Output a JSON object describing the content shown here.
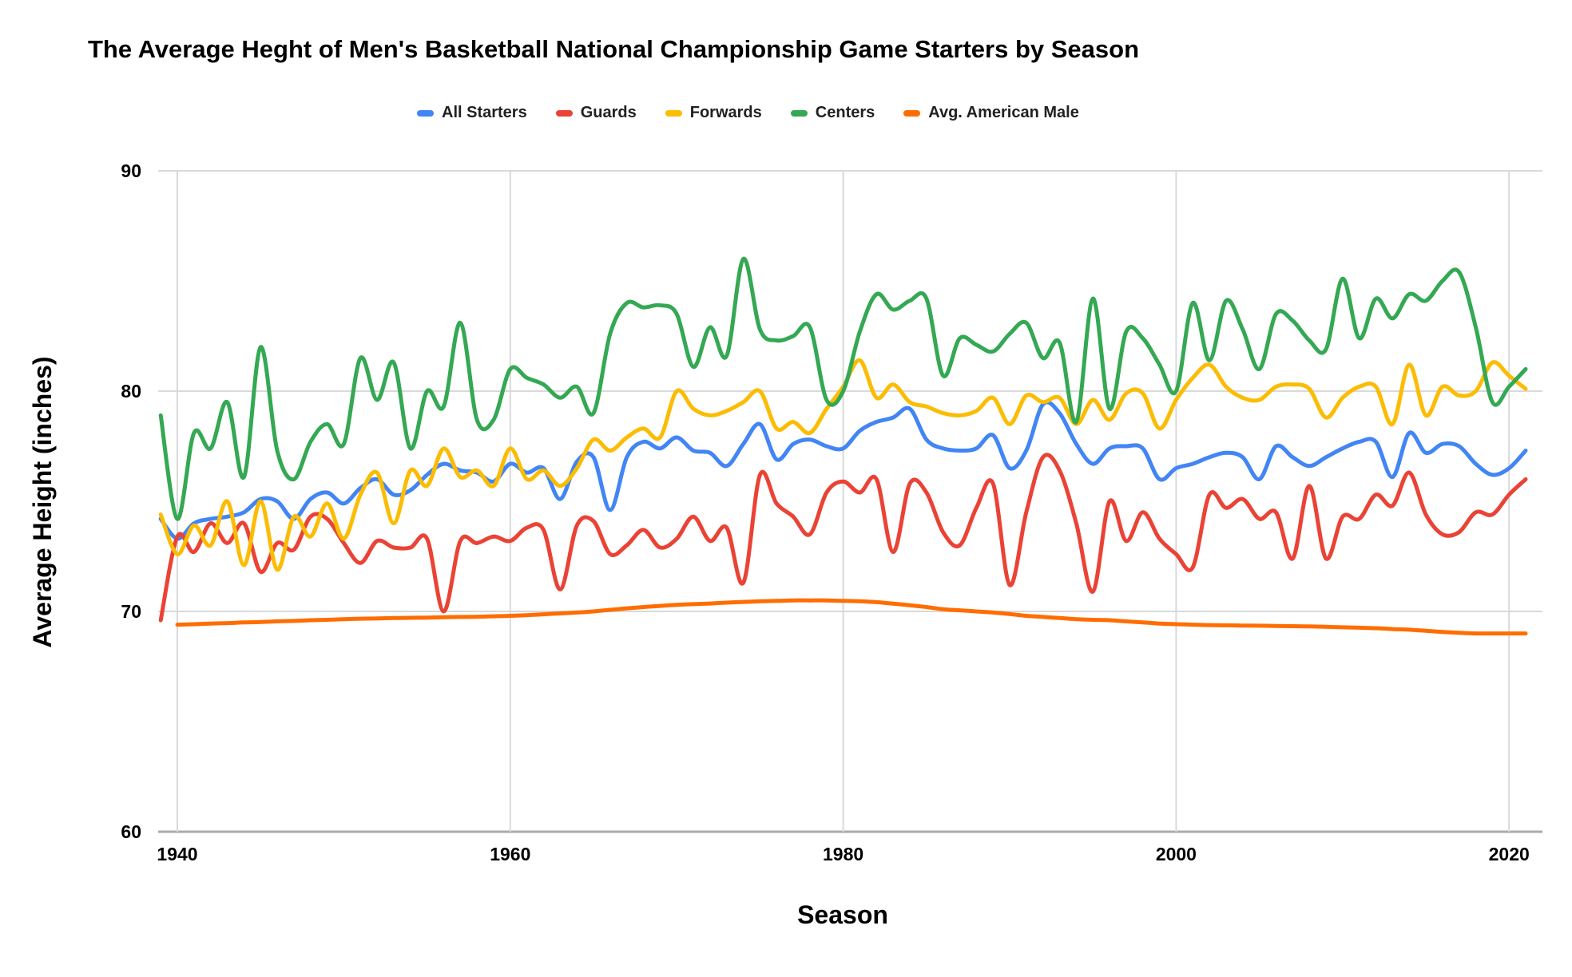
{
  "chart_data": {
    "type": "line",
    "title": "The Average Heght of Men's Basketball National Championship Game Starters by Season",
    "xlabel": "Season",
    "ylabel": "Average Height (inches)",
    "x_ticks": [
      1940,
      1960,
      1980,
      2000,
      2020
    ],
    "y_ticks": [
      60,
      70,
      80,
      90
    ],
    "ylim": [
      60,
      90
    ],
    "x_range": [
      1939,
      2021
    ],
    "grid": true,
    "legend_position": "top",
    "line_smoothing": true,
    "years": [
      1939,
      1940,
      1941,
      1942,
      1943,
      1944,
      1945,
      1946,
      1947,
      1948,
      1949,
      1950,
      1951,
      1952,
      1953,
      1954,
      1955,
      1956,
      1957,
      1958,
      1959,
      1960,
      1961,
      1962,
      1963,
      1964,
      1965,
      1966,
      1967,
      1968,
      1969,
      1970,
      1971,
      1972,
      1973,
      1974,
      1975,
      1976,
      1977,
      1978,
      1979,
      1980,
      1981,
      1982,
      1983,
      1984,
      1985,
      1986,
      1987,
      1988,
      1989,
      1990,
      1991,
      1992,
      1993,
      1994,
      1995,
      1996,
      1997,
      1998,
      1999,
      2000,
      2001,
      2002,
      2003,
      2004,
      2005,
      2006,
      2007,
      2008,
      2009,
      2010,
      2011,
      2012,
      2013,
      2014,
      2015,
      2016,
      2017,
      2018,
      2019,
      2020,
      2021
    ],
    "series": [
      {
        "name": "All Starters",
        "color": "#4285F4",
        "values": [
          74.2,
          73.3,
          74.0,
          74.2,
          74.3,
          74.5,
          75.1,
          75.0,
          74.2,
          75.1,
          75.4,
          74.9,
          75.6,
          76.0,
          75.3,
          75.5,
          76.2,
          76.7,
          76.4,
          76.3,
          75.9,
          76.7,
          76.3,
          76.5,
          75.1,
          76.8,
          77.0,
          74.6,
          77.0,
          77.7,
          77.4,
          77.9,
          77.3,
          77.2,
          76.6,
          77.6,
          78.5,
          76.9,
          77.6,
          77.8,
          77.5,
          77.4,
          78.2,
          78.6,
          78.8,
          79.2,
          77.8,
          77.4,
          77.3,
          77.4,
          78.0,
          76.5,
          77.3,
          79.4,
          79.0,
          77.6,
          76.7,
          77.4,
          77.5,
          77.4,
          76.0,
          76.5,
          76.7,
          77.0,
          77.2,
          77.0,
          76.0,
          77.5,
          77.0,
          76.6,
          77.0,
          77.4,
          77.7,
          77.7,
          76.1,
          78.1,
          77.2,
          77.6,
          77.5,
          76.7,
          76.2,
          76.5,
          77.3
        ]
      },
      {
        "name": "Guards",
        "color": "#EA4335",
        "values": [
          69.6,
          73.4,
          72.7,
          74.0,
          73.1,
          74.0,
          71.8,
          73.1,
          72.8,
          74.3,
          74.2,
          73.1,
          72.2,
          73.2,
          72.9,
          72.9,
          73.3,
          70.0,
          73.2,
          73.1,
          73.4,
          73.2,
          73.8,
          73.7,
          71.0,
          73.9,
          74.1,
          72.6,
          73.0,
          73.7,
          72.9,
          73.3,
          74.3,
          73.2,
          73.8,
          71.3,
          76.2,
          74.9,
          74.3,
          73.5,
          75.4,
          75.9,
          75.4,
          76.0,
          72.7,
          75.8,
          75.4,
          73.6,
          73.0,
          74.7,
          75.8,
          71.2,
          74.5,
          77.0,
          76.4,
          74.0,
          70.9,
          75.0,
          73.2,
          74.5,
          73.3,
          72.6,
          72.0,
          75.3,
          74.7,
          75.1,
          74.2,
          74.5,
          72.4,
          75.7,
          72.4,
          74.3,
          74.2,
          75.3,
          74.8,
          76.3,
          74.4,
          73.5,
          73.6,
          74.5,
          74.4,
          75.3,
          76.0
        ]
      },
      {
        "name": "Forwards",
        "color": "#FBBC04",
        "values": [
          74.4,
          72.6,
          73.9,
          73.0,
          75.0,
          72.1,
          75.0,
          71.9,
          74.3,
          73.4,
          74.9,
          73.3,
          75.3,
          76.3,
          74.0,
          76.4,
          75.7,
          77.4,
          76.1,
          76.4,
          75.7,
          77.4,
          76.0,
          76.4,
          75.7,
          76.5,
          77.8,
          77.3,
          77.9,
          78.3,
          77.9,
          80.0,
          79.2,
          78.9,
          79.1,
          79.5,
          80.0,
          78.3,
          78.6,
          78.1,
          79.2,
          80.2,
          81.4,
          79.7,
          80.3,
          79.5,
          79.3,
          79.0,
          78.9,
          79.1,
          79.7,
          78.5,
          79.8,
          79.5,
          79.7,
          78.5,
          79.6,
          78.7,
          79.9,
          79.9,
          78.3,
          79.6,
          80.6,
          81.2,
          80.2,
          79.7,
          79.6,
          80.2,
          80.3,
          80.1,
          78.8,
          79.7,
          80.2,
          80.2,
          78.5,
          81.2,
          78.9,
          80.2,
          79.8,
          80.0,
          81.3,
          80.7,
          80.1
        ]
      },
      {
        "name": "Centers",
        "color": "#34A853",
        "values": [
          78.9,
          74.2,
          78.1,
          77.4,
          79.5,
          76.1,
          82.0,
          77.3,
          76.0,
          77.7,
          78.5,
          77.6,
          81.5,
          79.6,
          81.3,
          77.4,
          80.0,
          79.3,
          83.1,
          78.7,
          78.7,
          81.0,
          80.6,
          80.3,
          79.7,
          80.2,
          79.0,
          82.6,
          84.0,
          83.8,
          83.9,
          83.5,
          81.1,
          82.9,
          81.6,
          86.0,
          82.8,
          82.3,
          82.5,
          82.9,
          79.6,
          80.0,
          82.7,
          84.4,
          83.7,
          84.1,
          84.2,
          80.7,
          82.4,
          82.1,
          81.8,
          82.6,
          83.1,
          81.5,
          82.2,
          78.6,
          84.2,
          79.2,
          82.7,
          82.4,
          81.2,
          80.0,
          84.0,
          81.4,
          84.1,
          82.8,
          81.0,
          83.5,
          83.2,
          82.3,
          81.9,
          85.1,
          82.4,
          84.2,
          83.3,
          84.4,
          84.1,
          85.0,
          85.4,
          82.9,
          79.5,
          80.2,
          81.0
        ]
      },
      {
        "name": "Avg. American Male",
        "color": "#FF6D01",
        "values": [
          null,
          69.4,
          69.42,
          69.45,
          69.47,
          69.5,
          69.52,
          69.55,
          69.57,
          69.6,
          69.62,
          69.65,
          69.67,
          69.68,
          69.7,
          69.71,
          69.72,
          69.74,
          69.75,
          69.76,
          69.78,
          69.8,
          69.83,
          69.87,
          69.91,
          69.95,
          70.0,
          70.07,
          70.14,
          70.2,
          70.25,
          70.3,
          70.33,
          70.36,
          70.4,
          70.43,
          70.46,
          70.48,
          70.5,
          70.5,
          70.5,
          70.48,
          70.46,
          70.42,
          70.35,
          70.28,
          70.2,
          70.1,
          70.05,
          70.0,
          69.95,
          69.88,
          69.8,
          69.75,
          69.7,
          69.65,
          69.62,
          69.6,
          69.55,
          69.5,
          69.45,
          69.42,
          69.4,
          69.38,
          69.37,
          69.36,
          69.35,
          69.34,
          69.33,
          69.32,
          69.3,
          69.28,
          69.26,
          69.24,
          69.2,
          69.17,
          69.12,
          69.07,
          69.03,
          69.0,
          69.0,
          69.0,
          69.0
        ]
      }
    ]
  }
}
